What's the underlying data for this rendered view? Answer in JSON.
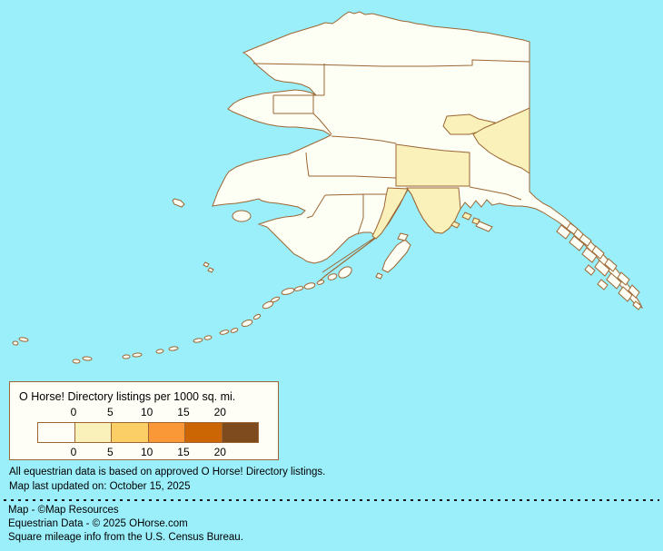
{
  "legend": {
    "title": "O Horse! Directory listings per 1000 sq. mi.",
    "ticks": [
      "0",
      "5",
      "10",
      "15",
      "20"
    ],
    "ramp_colors": [
      "#FEFEF6",
      "#FAF0B9",
      "#FCCE66",
      "#FA9838",
      "#CC6605",
      "#7D4B1D"
    ]
  },
  "map": {
    "region": "Alaska",
    "shaded_value": "0-5"
  },
  "notes": {
    "line1": "All equestrian data is based on approved O Horse! Directory listings.",
    "line2": "Map last updated on: October 15, 2025"
  },
  "credits": {
    "line1": "Map - ©Map Resources",
    "line2": "Equestrian Data - © 2025 OHorse.com",
    "line3": "Square mileage info from the U.S. Census Bureau."
  },
  "colors": {
    "ocean": "#9BEFFA",
    "land": "#FDFEF4",
    "shaded_low": "#F9F0BA",
    "border": "#9C6633",
    "legend_bg": "#FFFEF6",
    "text": "#000000"
  }
}
